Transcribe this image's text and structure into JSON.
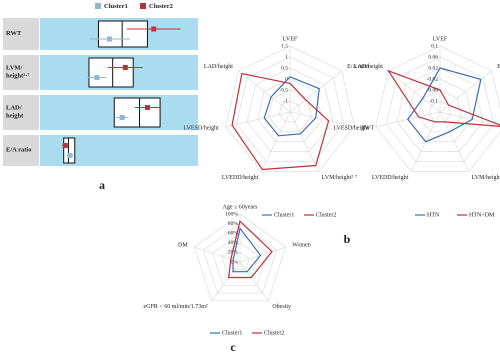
{
  "chart_data": [
    {
      "type": "box",
      "label": "a",
      "categories": [
        [
          "RWT"
        ],
        [
          "LVM/",
          "height²·⁷"
        ],
        [
          "LAD/",
          "height"
        ],
        [
          "E/A ratio"
        ]
      ],
      "xlim": [
        0,
        100
      ],
      "boxes": [
        {
          "q1": 37,
          "median": 52,
          "q3": 68
        },
        {
          "q1": 31,
          "median": 46,
          "q3": 59
        },
        {
          "q1": 47,
          "median": 63,
          "q3": 76
        },
        {
          "q1": 15,
          "median": 18,
          "q3": 22
        }
      ],
      "series": [
        {
          "name": "Cluster1",
          "color": "#8fb8d6",
          "values": [
            44,
            36,
            52,
            19
          ],
          "errors": [
            13,
            6,
            4,
            2
          ]
        },
        {
          "name": "Cluster2",
          "color": "#c0303a",
          "values": [
            72,
            54,
            68,
            16
          ],
          "errors": [
            17,
            11,
            8,
            2
          ]
        }
      ]
    },
    {
      "type": "radar",
      "label": "b",
      "categories": [
        "LVEF",
        "E/A ratio",
        "RWT",
        "LVM/height²·⁷",
        "LVEDD/height",
        "LVESD/height",
        "LAD/height"
      ],
      "rlim": [
        -1.5,
        1.5
      ],
      "rticks": [
        1.5,
        1,
        0.5,
        0,
        -0.5,
        -1
      ],
      "series": [
        {
          "name": "Cluster1",
          "color": "#3a6fb0",
          "values": [
            0.1,
            0.2,
            -0.3,
            -0.4,
            -0.3,
            -0.3,
            -0.4
          ]
        },
        {
          "name": "Cluster2",
          "color": "#c0303a",
          "values": [
            -0.2,
            -0.6,
            0.3,
            1.2,
            1.4,
            1.2,
            1.3
          ]
        }
      ]
    },
    {
      "type": "radar",
      "categories": [
        "LVEF",
        "E/A ratio",
        "RWT",
        "LVM/height²·⁷",
        "LVEDD/height",
        "LVESD/height",
        "LAD/height"
      ],
      "rlim": [
        -0.14,
        0.1
      ],
      "rticks": [
        0.1,
        0.06,
        0.02,
        -0.02,
        -0.06,
        -0.1
      ],
      "series": [
        {
          "name": "HTN",
          "color": "#3a6fb0",
          "values": [
            0.02,
            0.05,
            -0.02,
            -0.06,
            -0.02,
            -0.02,
            -0.06
          ]
        },
        {
          "name": "HTN+DM",
          "color": "#c0303a",
          "values": [
            -0.06,
            -0.1,
            0.1,
            -0.1,
            -0.1,
            -0.06,
            0.1
          ]
        }
      ]
    },
    {
      "type": "radar",
      "label": "c",
      "categories": [
        "Age ≥ 60years",
        "Women",
        "Obesity",
        "eGFR < 60 ml/min/1.73m²",
        "DM"
      ],
      "rlim": [
        0,
        100
      ],
      "rticks": [
        {
          "value": 100,
          "label": "100%"
        },
        {
          "value": 80,
          "label": "80%"
        },
        {
          "value": 60,
          "label": "60%"
        },
        {
          "value": 40,
          "label": "40%"
        },
        {
          "value": 20,
          "label": "20%"
        },
        {
          "value": 0,
          "label": "0%"
        }
      ],
      "series": [
        {
          "name": "Cluster1",
          "color": "#3a6fb0",
          "values": [
            70,
            45,
            25,
            25,
            15
          ]
        },
        {
          "name": "Cluster2",
          "color": "#c0303a",
          "values": [
            85,
            70,
            40,
            40,
            20
          ]
        }
      ]
    }
  ]
}
